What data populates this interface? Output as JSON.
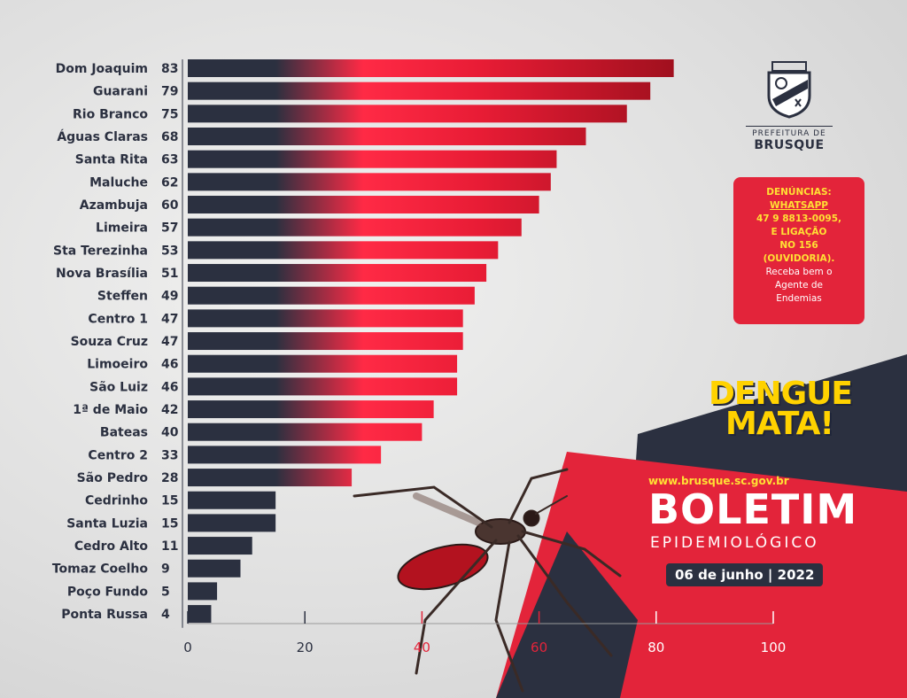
{
  "chart_data": {
    "type": "bar",
    "orientation": "horizontal",
    "categories": [
      "Dom Joaquim",
      "Guarani",
      "Rio Branco",
      "Águas Claras",
      "Santa Rita",
      "Maluche",
      "Azambuja",
      "Limeira",
      "Sta Terezinha",
      "Nova Brasília",
      "Steffen",
      "Centro 1",
      "Souza Cruz",
      "Limoeiro",
      "São Luiz",
      "1ª de Maio",
      "Bateas",
      "Centro 2",
      "São Pedro",
      "Cedrinho",
      "Santa Luzia",
      "Cedro Alto",
      "Tomaz Coelho",
      "Poço Fundo",
      "Ponta Russa"
    ],
    "values": [
      83,
      79,
      75,
      68,
      63,
      62,
      60,
      57,
      53,
      51,
      49,
      47,
      47,
      46,
      46,
      42,
      40,
      33,
      28,
      15,
      15,
      11,
      9,
      5,
      4
    ],
    "value_labels": [
      "83",
      "79",
      "75",
      "68",
      "63",
      "62",
      "60",
      "57",
      "53",
      "51",
      "49",
      "47",
      "47",
      "46",
      "46",
      "42",
      "40",
      "33",
      "28",
      "15",
      "15",
      "11",
      "9",
      "5",
      "4"
    ],
    "xlim": [
      0,
      100
    ],
    "xticks": [
      {
        "value": 0,
        "label": "0"
      },
      {
        "value": 20,
        "label": "20"
      },
      {
        "value": 40,
        "label": "40"
      },
      {
        "value": 60,
        "label": "60"
      },
      {
        "value": 80,
        "label": "80"
      },
      {
        "value": 100,
        "label": "100"
      }
    ],
    "title": "",
    "xlabel": "",
    "ylabel": "",
    "grid": false,
    "colors": {
      "bar_dark": "#2b3040",
      "bar_red": "#ff2a45",
      "bar_dark_red": "#a0101e"
    }
  },
  "logo": {
    "icon": "brusque-coat-of-arms-icon",
    "line1": "PREFEITURA DE",
    "line2": "BRUSQUE"
  },
  "notice": {
    "line1": "DENÚNCIAS:",
    "line2": "WHATSAPP",
    "line3": "47 9 8813-0095,",
    "line4": "E LIGAÇÃO",
    "line5": "NO 156",
    "line6": "(OUVIDORIA).",
    "line7": "Receba bem o",
    "line8": "Agente de",
    "line9": "Endemias"
  },
  "banner": {
    "dengue_line1": "DENGUE",
    "dengue_line2": "MATA!",
    "website": "www.brusque.sc.gov.br",
    "title": "BOLETIM",
    "subtitle": "EPIDEMIOLÓGICO",
    "date": "06 de junho | 2022"
  },
  "colors": {
    "navy": "#2b3040",
    "red": "#e3243a",
    "yellow": "#ffd200"
  }
}
